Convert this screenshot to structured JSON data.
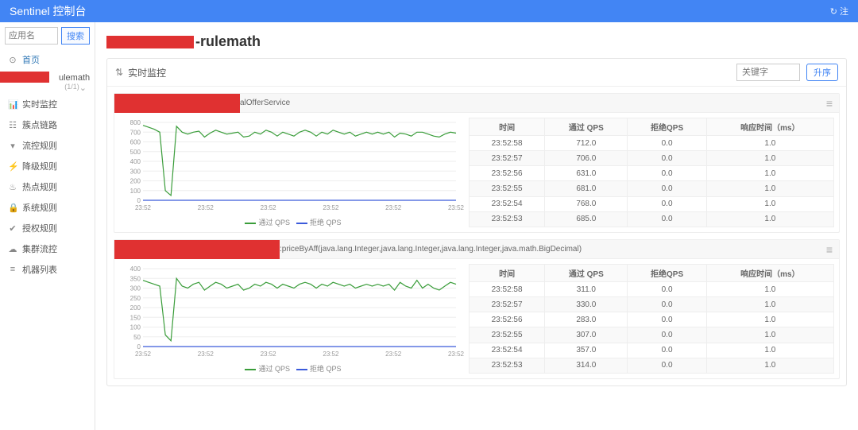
{
  "header": {
    "title": "Sentinel 控制台",
    "right": "注"
  },
  "search": {
    "placeholder": "应用名",
    "button": "搜索"
  },
  "home": {
    "label": "首页"
  },
  "app": {
    "suffix": "ulemath",
    "count": "(1/1)",
    "redbar_width": 62
  },
  "nav": [
    {
      "icon": "📊",
      "label": "实时监控"
    },
    {
      "icon": "☷",
      "label": "簇点链路"
    },
    {
      "icon": "▾",
      "label": "流控规则"
    },
    {
      "icon": "⚡",
      "label": "降级规则"
    },
    {
      "icon": "♨",
      "label": "热点规则"
    },
    {
      "icon": "🔒",
      "label": "系统规则"
    },
    {
      "icon": "✔",
      "label": "授权规则"
    },
    {
      "icon": "☁",
      "label": "集群流控"
    },
    {
      "icon": "≡",
      "label": "机器列表"
    }
  ],
  "page_title_suffix": "-rulemath",
  "panel": {
    "title": "实时监控",
    "keyword_placeholder": "关键字",
    "sort_label": "升序"
  },
  "table_headers": [
    "时间",
    "通过 QPS",
    "拒绝QPS",
    "响应时间（ms）"
  ],
  "colors": {
    "pass_line": "#3a9d3a",
    "reject_line": "#3b5bdb",
    "axis": "#999",
    "grid": "#eee",
    "redbar": "#e03131"
  },
  "legend": {
    "pass": "通过 QPS",
    "reject": "拒绝 QPS"
  },
  "cards": [
    {
      "red_width": 158,
      "title_suffix": "alOfferService",
      "chart": {
        "ymax": 800,
        "ystep": 100,
        "xlabels": [
          "23:52",
          "23:52",
          "23:52",
          "23:52",
          "23:52",
          "23:52"
        ],
        "pass_series": [
          770,
          750,
          730,
          700,
          100,
          50,
          760,
          700,
          680,
          700,
          710,
          650,
          690,
          720,
          700,
          680,
          690,
          700,
          650,
          660,
          700,
          680,
          720,
          700,
          660,
          700,
          680,
          660,
          700,
          720,
          700,
          660,
          700,
          680,
          720,
          700,
          680,
          700,
          660,
          680,
          700,
          680,
          700,
          680,
          700,
          650,
          690,
          680,
          660,
          700,
          700,
          680,
          660,
          650,
          680,
          700,
          690
        ],
        "reject_series": [
          0,
          0,
          0,
          0,
          0,
          0,
          0,
          0,
          0,
          0,
          0,
          0,
          0,
          0,
          0,
          0,
          0,
          0,
          0,
          0,
          0,
          0,
          0,
          0,
          0,
          0,
          0,
          0,
          0,
          0,
          0,
          0,
          0,
          0,
          0,
          0,
          0,
          0,
          0,
          0,
          0,
          0,
          0,
          0,
          0,
          0,
          0,
          0,
          0,
          0,
          0,
          0,
          0,
          0,
          0,
          0,
          0
        ]
      },
      "rows": [
        [
          "23:52:58",
          "712.0",
          "0.0",
          "1.0"
        ],
        [
          "23:52:57",
          "706.0",
          "0.0",
          "1.0"
        ],
        [
          "23:52:56",
          "631.0",
          "0.0",
          "1.0"
        ],
        [
          "23:52:55",
          "681.0",
          "0.0",
          "1.0"
        ],
        [
          "23:52:54",
          "768.0",
          "0.0",
          "1.0"
        ],
        [
          "23:52:53",
          "685.0",
          "0.0",
          "1.0"
        ]
      ]
    },
    {
      "red_width": 208,
      "title_suffix": ":priceByAff(java.lang.Integer,java.lang.Integer,java.lang.Integer,java.math.BigDecimal)",
      "chart": {
        "ymax": 400,
        "ystep": 50,
        "xlabels": [
          "23:52",
          "23:52",
          "23:52",
          "23:52",
          "23:52",
          "23:52"
        ],
        "pass_series": [
          340,
          330,
          320,
          310,
          60,
          30,
          350,
          310,
          300,
          320,
          330,
          290,
          310,
          330,
          320,
          300,
          310,
          320,
          290,
          300,
          320,
          310,
          330,
          320,
          300,
          320,
          310,
          300,
          320,
          330,
          320,
          300,
          320,
          310,
          330,
          320,
          310,
          320,
          300,
          310,
          320,
          310,
          320,
          310,
          320,
          290,
          330,
          310,
          300,
          340,
          300,
          320,
          300,
          290,
          310,
          330,
          320
        ],
        "reject_series": [
          0,
          0,
          0,
          0,
          0,
          0,
          0,
          0,
          0,
          0,
          0,
          0,
          0,
          0,
          0,
          0,
          0,
          0,
          0,
          0,
          0,
          0,
          0,
          0,
          0,
          0,
          0,
          0,
          0,
          0,
          0,
          0,
          0,
          0,
          0,
          0,
          0,
          0,
          0,
          0,
          0,
          0,
          0,
          0,
          0,
          0,
          0,
          0,
          0,
          0,
          0,
          0,
          0,
          0,
          0,
          0,
          0
        ]
      },
      "rows": [
        [
          "23:52:58",
          "311.0",
          "0.0",
          "1.0"
        ],
        [
          "23:52:57",
          "330.0",
          "0.0",
          "1.0"
        ],
        [
          "23:52:56",
          "283.0",
          "0.0",
          "1.0"
        ],
        [
          "23:52:55",
          "307.0",
          "0.0",
          "1.0"
        ],
        [
          "23:52:54",
          "357.0",
          "0.0",
          "1.0"
        ],
        [
          "23:52:53",
          "314.0",
          "0.0",
          "1.0"
        ]
      ]
    }
  ]
}
